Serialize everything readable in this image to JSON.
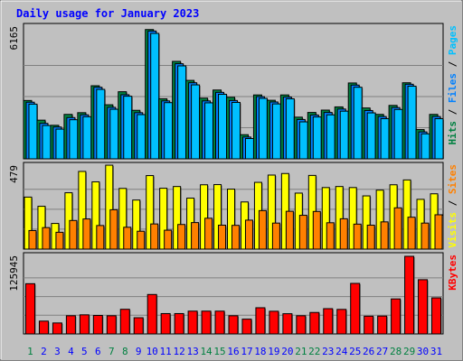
{
  "chart_data": {
    "type": "bar",
    "title": "Daily usage for January 2023",
    "days": [
      "1",
      "2",
      "3",
      "4",
      "5",
      "6",
      "7",
      "8",
      "9",
      "10",
      "11",
      "12",
      "13",
      "14",
      "15",
      "16",
      "17",
      "18",
      "19",
      "20",
      "21",
      "22",
      "23",
      "24",
      "25",
      "26",
      "27",
      "28",
      "29",
      "30",
      "31"
    ],
    "weekend_days": [
      "1",
      "7",
      "8",
      "14",
      "15",
      "21",
      "22",
      "28",
      "29"
    ],
    "panels": [
      {
        "id": "hits-files-pages",
        "ymax": 6165,
        "ymax_label": "6165",
        "side_labels": [
          "Pages",
          "Files",
          "Hits"
        ],
        "series": [
          {
            "name": "Hits",
            "color": "#008040",
            "values": [
              2730,
              1810,
              1570,
              2080,
              2160,
              3420,
              2530,
              3140,
              2270,
              6050,
              2810,
              4560,
              3670,
              2840,
              3220,
              2880,
              1130,
              2990,
              2740,
              2990,
              1950,
              2170,
              2280,
              2430,
              3550,
              2380,
              2080,
              2500,
              3560,
              1370,
              2080
            ]
          },
          {
            "name": "Files",
            "color": "#0080ff",
            "values": [
              2650,
              1660,
              1490,
              1930,
              2060,
              3350,
              2410,
              3000,
              2160,
              5980,
              2710,
              4450,
              3560,
              2710,
              3110,
              2730,
              1020,
              2910,
              2660,
              2890,
              1840,
              2050,
              2170,
              2330,
              3450,
              2260,
              1980,
              2400,
              3490,
              1260,
              1980
            ]
          },
          {
            "name": "Pages",
            "color": "#00c0ff",
            "values": [
              2560,
              1560,
              1390,
              1830,
              1970,
              3250,
              2320,
              2930,
              2070,
              5870,
              2630,
              4350,
              3460,
              2620,
              3020,
              2640,
              950,
              2830,
              2570,
              2810,
              1730,
              1960,
              2060,
              2230,
              3350,
              2150,
              1880,
              2310,
              3400,
              1170,
              1880
            ]
          }
        ]
      },
      {
        "id": "visits-sites",
        "ymax": 479,
        "ymax_label": "479",
        "side_labels": [
          "Sites",
          "Visits"
        ],
        "series": [
          {
            "name": "Visits",
            "color": "#ffff00",
            "values": [
              300,
              247,
              148,
              325,
              448,
              388,
              484,
              350,
              283,
              424,
              351,
              361,
              294,
              371,
              372,
              346,
              272,
              385,
              427,
              436,
              323,
              425,
              355,
              361,
              355,
              307,
              340,
              371,
              399,
              287,
              319
            ]
          },
          {
            "name": "Sites",
            "color": "#ff8000",
            "values": [
              107,
              124,
              97,
              165,
              174,
              136,
              227,
              126,
              103,
              145,
              109,
              142,
              153,
              178,
              138,
              137,
              167,
              222,
              150,
              218,
              195,
              217,
              152,
              175,
              144,
              138,
              157,
              238,
              184,
              150,
              198
            ]
          }
        ]
      },
      {
        "id": "kbytes",
        "ymax": 125945,
        "ymax_label": "125945",
        "side_labels": [
          "KBytes"
        ],
        "series": [
          {
            "name": "KBytes",
            "color": "#ff0000",
            "values": [
              81500,
              20800,
              17800,
              29500,
              31000,
              30000,
              29500,
              40000,
              26300,
              64000,
              33000,
              33000,
              37000,
              37000,
              37000,
              29500,
              24000,
              42500,
              36800,
              32800,
              29500,
              34800,
              41000,
              39800,
              82000,
              28800,
              29000,
              56800,
              125945,
              88000,
              58500
            ]
          }
        ]
      }
    ]
  },
  "colors": {
    "background": "#c0c0c0",
    "frame": "#808080",
    "title": "#0000ff",
    "weekday_label": "#0000ff",
    "weekend_label": "#008040",
    "grid": "#808080",
    "shadow": "#606060",
    "bar_border": "#000000"
  }
}
